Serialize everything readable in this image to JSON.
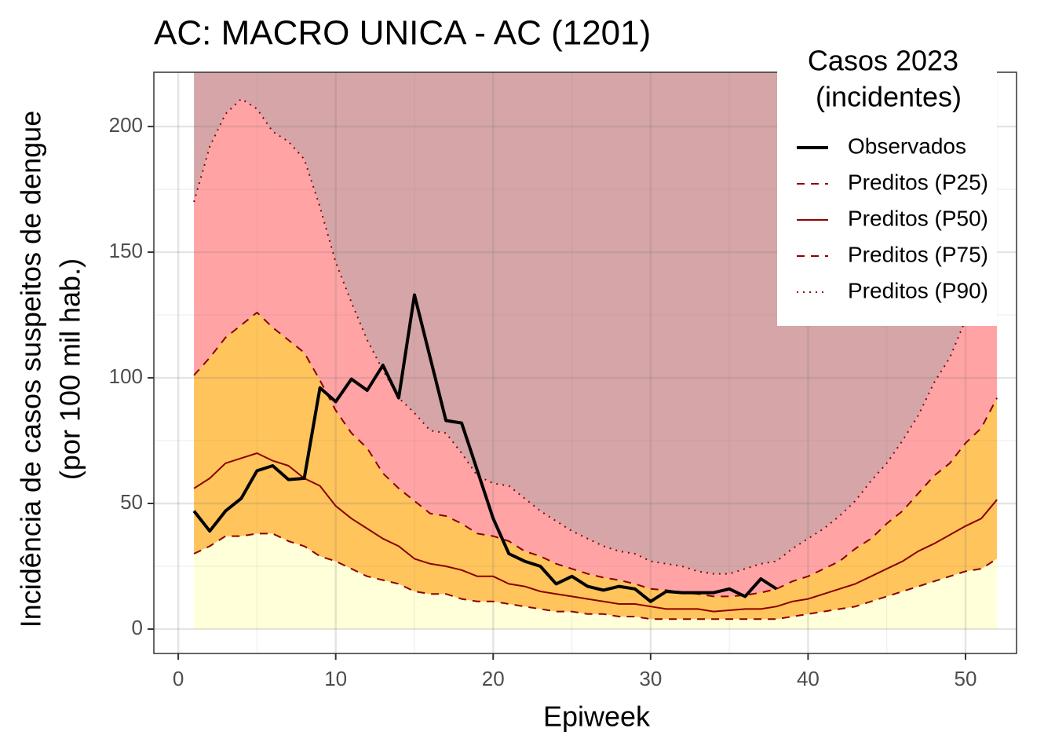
{
  "chart_data": {
    "type": "line",
    "title": "AC: MACRO UNICA - AC (1201)",
    "xlabel": "Epiweek",
    "ylabel": [
      "Incidência de casos suspeitos de dengue",
      "(por 100 mil hab.)"
    ],
    "legend_title": [
      "Casos 2023",
      "(incidentes)"
    ],
    "legend": "top-right",
    "grid": true,
    "xlim": [
      -1.55,
      53.24
    ],
    "ylim": [
      -9.7,
      221.6
    ],
    "xticks": [
      0,
      10,
      20,
      30,
      40,
      50
    ],
    "yticks": [
      0,
      50,
      100,
      150,
      200
    ],
    "x": [
      1,
      2,
      3,
      4,
      5,
      6,
      7,
      8,
      9,
      10,
      11,
      12,
      13,
      14,
      15,
      16,
      17,
      18,
      19,
      20,
      21,
      22,
      23,
      24,
      25,
      26,
      27,
      28,
      29,
      30,
      31,
      32,
      33,
      34,
      35,
      36,
      37,
      38,
      39,
      40,
      41,
      42,
      43,
      44,
      45,
      46,
      47,
      48,
      49,
      50,
      51,
      52
    ],
    "band_colors": [
      "#ffffd9",
      "#ffc45c",
      "#ffa3a5",
      "#d5a5a7"
    ],
    "series": [
      {
        "name": "Observados",
        "color": "#000000",
        "dash": "solid",
        "width": 4,
        "values": [
          47,
          39,
          47,
          52,
          63,
          65,
          59.5,
          60,
          96,
          90.5,
          99.5,
          95,
          105,
          92,
          133,
          108,
          83,
          82,
          63,
          44,
          30,
          27,
          25,
          18,
          21,
          17,
          15.5,
          17,
          16,
          11,
          15,
          14.5,
          14.5,
          14.5,
          16,
          13,
          20,
          16,
          null,
          null,
          null,
          null,
          null,
          null,
          null,
          null,
          null,
          null,
          null,
          null,
          null,
          null
        ]
      },
      {
        "name": "Preditos (P25)",
        "color": "#8b0000",
        "dash": "dashed",
        "width": 2,
        "values": [
          30,
          33,
          37,
          37,
          38,
          38,
          35,
          33,
          29,
          27,
          24,
          21,
          19.5,
          18,
          15,
          14,
          14,
          12,
          11,
          11,
          10,
          9,
          8,
          7,
          7,
          6,
          6,
          5,
          5,
          4,
          4,
          4,
          4,
          4,
          4,
          4,
          4,
          4,
          5,
          6,
          7,
          8,
          9,
          11,
          13,
          15,
          17,
          19,
          21,
          23,
          24,
          28
        ]
      },
      {
        "name": "Preditos (P50)",
        "color": "#8b0000",
        "dash": "solid",
        "width": 2,
        "values": [
          56,
          60,
          66,
          68,
          70,
          67,
          65,
          60,
          57,
          49,
          44,
          40,
          36,
          33,
          28,
          26,
          25,
          23.5,
          21,
          21,
          18,
          17,
          15,
          14,
          13,
          12,
          11,
          10,
          10,
          9,
          8,
          8,
          8,
          7,
          7.5,
          8,
          8,
          9,
          11,
          12,
          14,
          16,
          18,
          21,
          24,
          27,
          31,
          34,
          37.5,
          41,
          44,
          51.5
        ]
      },
      {
        "name": "Preditos (P75)",
        "color": "#8b0000",
        "dash": "dashed",
        "width": 2,
        "values": [
          101,
          108,
          116,
          121,
          126,
          120,
          115,
          110,
          99,
          87,
          78,
          72,
          62,
          56,
          51,
          46,
          45,
          42,
          38,
          37,
          35,
          31,
          29,
          26,
          24,
          22,
          20.5,
          19.5,
          18,
          16,
          15.5,
          14.5,
          14,
          13,
          13,
          13.5,
          14.5,
          16,
          19,
          21,
          24,
          27,
          32,
          36,
          42,
          47,
          54,
          61,
          66,
          74,
          80,
          92
        ]
      },
      {
        "name": "Preditos (P90)",
        "color": "#8b0000",
        "dash": "dotted",
        "width": 2,
        "values": [
          170,
          192,
          205,
          211,
          207,
          198,
          194,
          187,
          168,
          146,
          130,
          115,
          103,
          92,
          86,
          79,
          78,
          70,
          61,
          58,
          57,
          52,
          47,
          43,
          39,
          36,
          33,
          31,
          30,
          27,
          26,
          25,
          23,
          22,
          22,
          24,
          26,
          27,
          32,
          36,
          40,
          45,
          51,
          59,
          66,
          75,
          85,
          98,
          108,
          123,
          140,
          160
        ]
      }
    ]
  }
}
